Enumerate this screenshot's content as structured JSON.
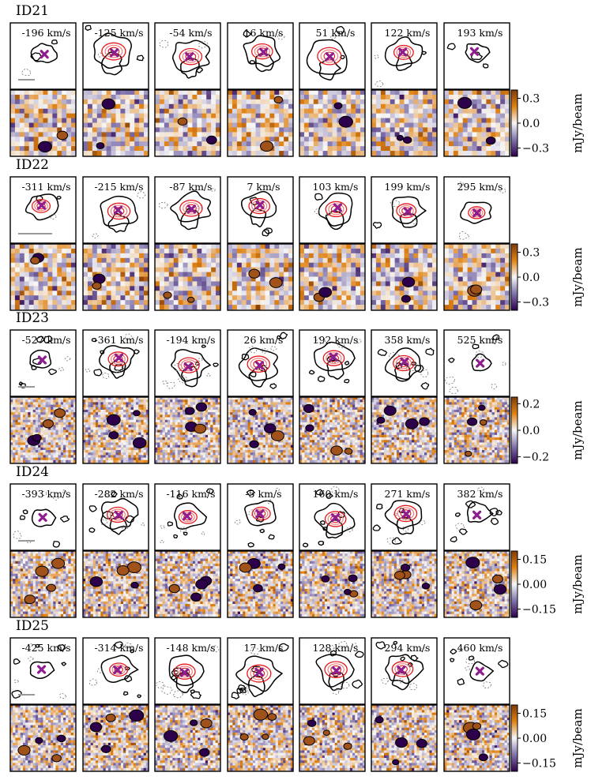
{
  "chart_data": {
    "type": "heatmap",
    "description_units": "channel maps",
    "colorbar_label": "mJy/beam",
    "colormap": [
      "#2d004b",
      "#8073ac",
      "#f7f7f7",
      "#e08214",
      "#7f3b08"
    ],
    "groups": [
      {
        "id": "ID21",
        "velocities": [
          "-196 km/s",
          "-125 km/s",
          "-54 km/s",
          "16 km/s",
          "51 km/s",
          "122 km/s",
          "193 km/s"
        ],
        "colorbar_range": [
          -0.4,
          0.4
        ],
        "colorbar_ticks": [
          0.3,
          0.0,
          -0.3
        ],
        "colorbar_tick_labels": [
          "0.3",
          "0.0",
          "−0.3"
        ],
        "noise": "coarse",
        "line_strength": [
          0.3,
          1.0,
          0.9,
          0.8,
          1.0,
          0.7,
          0.3
        ]
      },
      {
        "id": "ID22",
        "velocities": [
          "-311 km/s",
          "-215 km/s",
          "-87 km/s",
          "7 km/s",
          "103 km/s",
          "199 km/s",
          "295 km/s"
        ],
        "colorbar_range": [
          -0.4,
          0.4
        ],
        "colorbar_ticks": [
          0.3,
          0.0,
          -0.3
        ],
        "colorbar_tick_labels": [
          "0.3",
          "0.0",
          "−0.3"
        ],
        "noise": "coarse",
        "line_strength": [
          0.6,
          0.9,
          0.9,
          0.8,
          0.8,
          0.7,
          0.5
        ]
      },
      {
        "id": "ID23",
        "velocities": [
          "-527 km/s",
          "-361 km/s",
          "-194 km/s",
          "26 km/s",
          "192 km/s",
          "358 km/s",
          "525 km/s"
        ],
        "colorbar_range": [
          -0.25,
          0.25
        ],
        "colorbar_ticks": [
          0.2,
          0.0,
          -0.2
        ],
        "colorbar_tick_labels": [
          "0.2",
          "0.0",
          "−0.2"
        ],
        "noise": "fine",
        "line_strength": [
          0.2,
          0.7,
          0.8,
          0.9,
          0.8,
          0.8,
          0.2
        ]
      },
      {
        "id": "ID24",
        "velocities": [
          "-393 km/s",
          "-282 km/s",
          "-116 km/s",
          "-5 km/s",
          "160 km/s",
          "271 km/s",
          "382 km/s"
        ],
        "colorbar_range": [
          -0.2,
          0.2
        ],
        "colorbar_ticks": [
          0.15,
          0.0,
          -0.15
        ],
        "colorbar_tick_labels": [
          "0.15",
          "0.00",
          "−0.15"
        ],
        "noise": "fine",
        "line_strength": [
          0.3,
          0.8,
          0.6,
          0.6,
          0.8,
          0.9,
          0.4
        ]
      },
      {
        "id": "ID25",
        "velocities": [
          "-425 km/s",
          "-314 km/s",
          "-148 km/s",
          "17 km/s",
          "128 km/s",
          "294 km/s",
          "460 km/s"
        ],
        "colorbar_range": [
          -0.2,
          0.2
        ],
        "colorbar_ticks": [
          0.15,
          0.0,
          -0.15
        ],
        "colorbar_tick_labels": [
          "0.15",
          "0.00",
          "−0.15"
        ],
        "noise": "fine",
        "line_strength": [
          0.3,
          0.6,
          0.8,
          1.0,
          0.9,
          0.8,
          0.2
        ]
      }
    ]
  }
}
